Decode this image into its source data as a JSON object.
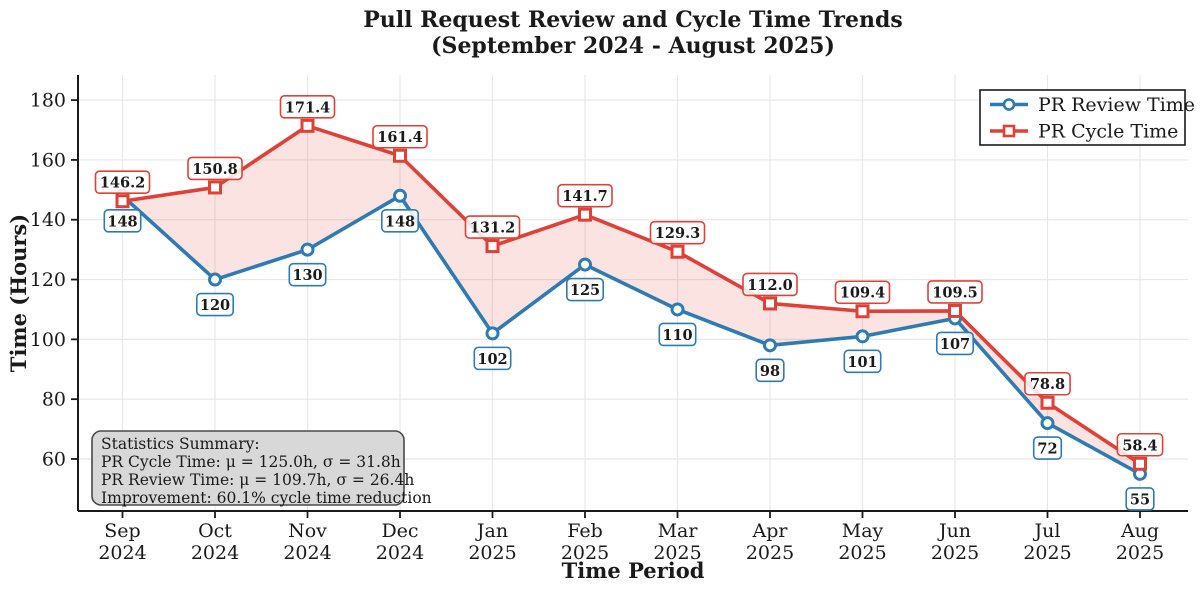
{
  "figure": {
    "title_line1": "Pull Request Review and Cycle Time Trends",
    "title_line2": "(September 2024 - August 2025)"
  },
  "chart_data": {
    "type": "line",
    "title": "Pull Request Review and Cycle Time Trends",
    "subtitle": "(September 2024 - August 2025)",
    "xlabel": "Time Period",
    "ylabel": "Time (Hours)",
    "categories": [
      "Sep 2024",
      "Oct 2024",
      "Nov 2024",
      "Dec 2024",
      "Jan 2025",
      "Feb 2025",
      "Mar 2025",
      "Apr 2025",
      "May 2025",
      "Jun 2025",
      "Jul 2025",
      "Aug 2025"
    ],
    "yticks": [
      60,
      80,
      100,
      120,
      140,
      160,
      180
    ],
    "ylim": [
      42.6,
      188.4
    ],
    "grid": true,
    "legend_position": "upper right",
    "fill_between": true,
    "series": [
      {
        "name": "PR Review Time",
        "marker": "circle",
        "color": "#2e7bb4",
        "label_side": "below",
        "values": [
          148,
          120,
          130,
          148,
          102,
          125,
          110,
          98,
          101,
          107,
          72,
          55
        ],
        "point_labels": [
          "148",
          "120",
          "130",
          "148",
          "102",
          "125",
          "110",
          "98",
          "101",
          "107",
          "72",
          "55"
        ]
      },
      {
        "name": "PR Cycle Time",
        "marker": "square",
        "color": "#e04137",
        "label_side": "above",
        "values": [
          146.2,
          150.8,
          171.4,
          161.4,
          131.2,
          141.7,
          129.3,
          112.0,
          109.4,
          109.5,
          78.8,
          58.4
        ],
        "point_labels": [
          "146.2",
          "150.8",
          "171.4",
          "161.4",
          "131.2",
          "141.7",
          "129.3",
          "112.0",
          "109.4",
          "109.5",
          "78.8",
          "58.4"
        ]
      }
    ]
  },
  "stats_box": {
    "title": "Statistics Summary:",
    "lines": [
      "PR Cycle Time: μ = 125.0h, σ = 31.8h",
      "PR Review Time: μ = 109.7h, σ = 26.4h",
      "Improvement: 60.1% cycle time reduction"
    ],
    "bg_color": "#d8d8d8",
    "border_color": "#4a4a4a"
  },
  "colors": {
    "review_blue": "#2e7bb4",
    "cycle_red": "#e04137",
    "fill_between": "rgba(226,66,56,0.15)",
    "grid": "#e8e8e8",
    "spine": "#1a1a1a",
    "label_box_bg": "rgba(255,255,255,0.85)"
  }
}
